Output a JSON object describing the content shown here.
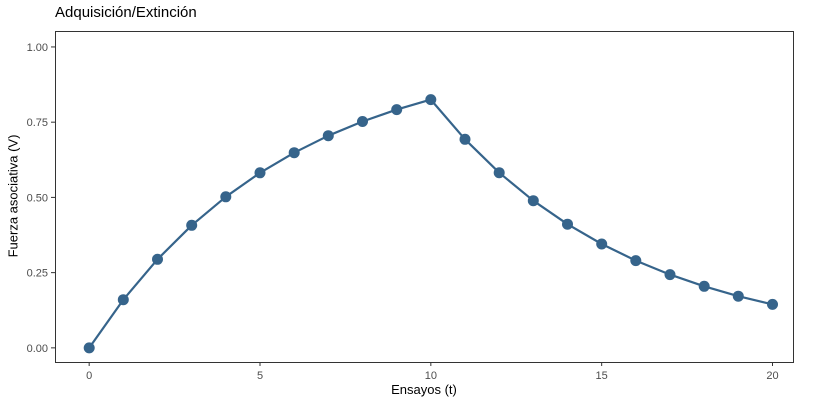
{
  "figure": {
    "background": "#ffffff"
  },
  "chart_data": {
    "type": "line",
    "title": "Adquisición/Extinción",
    "xlabel": "Ensayos (t)",
    "ylabel": "Fuerza asociativa (V)",
    "x": [
      0,
      1,
      2,
      3,
      4,
      5,
      6,
      7,
      8,
      9,
      10,
      11,
      12,
      13,
      14,
      15,
      16,
      17,
      18,
      19,
      20
    ],
    "y": [
      0.0,
      0.16,
      0.2944,
      0.4073,
      0.5021,
      0.5818,
      0.6487,
      0.7049,
      0.7521,
      0.7918,
      0.8251,
      0.6931,
      0.5822,
      0.489,
      0.4108,
      0.3451,
      0.2899,
      0.2435,
      0.2045,
      0.1718,
      0.1443
    ],
    "xticks": {
      "values": [
        0,
        5,
        10,
        15,
        20
      ],
      "labels": [
        "0",
        "5",
        "10",
        "15",
        "20"
      ]
    },
    "yticks": {
      "values": [
        0.0,
        0.25,
        0.5,
        0.75,
        1.0
      ],
      "labels": [
        "0.00",
        "0.25",
        "0.50",
        "0.75",
        "1.00"
      ]
    },
    "xlim": [
      -1,
      20.6
    ],
    "ylim": [
      -0.047,
      1.053
    ],
    "grid": "off",
    "legend": "none",
    "styles": {
      "line_color": "#36648B",
      "point_color": "#36648B",
      "point_radius": 5.5,
      "line_width": 2.2,
      "panel_border_color": "#333333",
      "tick_color": "#333333",
      "tick_label_color": "#4d4d4d",
      "title_color": "#000000"
    }
  }
}
